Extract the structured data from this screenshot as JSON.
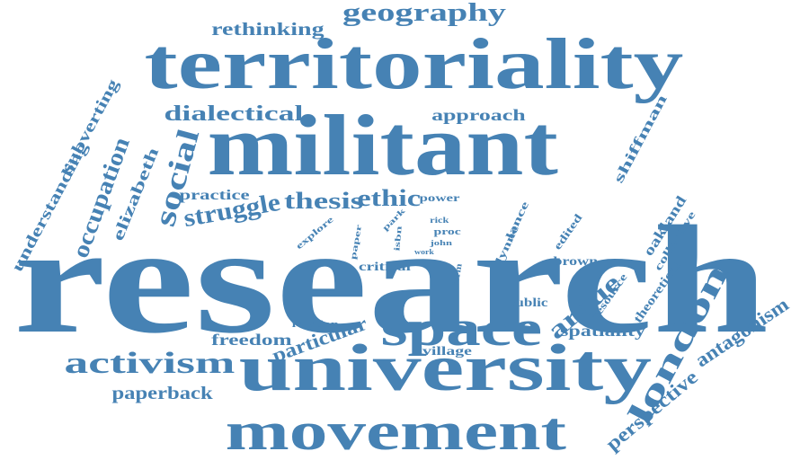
{
  "color": "#4682b4",
  "words": [
    "research",
    "militant",
    "territoriality",
    "university",
    "space",
    "movement",
    "activism",
    "london",
    "argue",
    "struggle",
    "thesis",
    "ethic",
    "social",
    "occupation",
    "geography",
    "dialectical",
    "rethinking",
    "approach",
    "subverting",
    "understanding",
    "elizabeth",
    "shiffman",
    "practice",
    "power",
    "explore",
    "paper",
    "park",
    "isbn",
    "rick",
    "proc",
    "john",
    "work",
    "lance",
    "lynne",
    "edited",
    "oakland",
    "collective",
    "brown",
    "critical",
    "form",
    "public",
    "resource",
    "theoretical",
    "relation",
    "particular",
    "freedom",
    "village",
    "spatiality",
    "antagonism",
    "perspective",
    "paperback"
  ]
}
